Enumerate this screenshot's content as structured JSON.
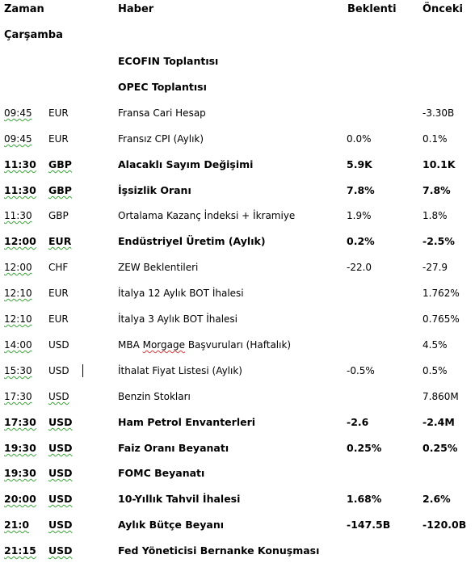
{
  "header": {
    "time": "Zaman",
    "news": "Haber",
    "expected": "Beklenti",
    "previous": "Önceki"
  },
  "day": "Çarşamba",
  "events": [
    {
      "time": "",
      "currency": "",
      "title": "ECOFIN Toplantısı",
      "expected": "",
      "previous": "",
      "bold": true
    },
    {
      "time": "",
      "currency": "",
      "title": "OPEC Toplantısı",
      "expected": "",
      "previous": "",
      "bold": true
    },
    {
      "time": "09:45",
      "currency": "EUR",
      "title": "Fransa Cari Hesap",
      "expected": "",
      "previous": "-3.30B",
      "bold": false
    },
    {
      "time": "09:45",
      "currency": "EUR",
      "title": "Fransız CPI (Aylık)",
      "expected": "0.0%",
      "previous": "0.1%",
      "bold": false
    },
    {
      "time": "11:30",
      "currency": "GBP",
      "title": "Alacaklı Sayım Değişimi",
      "expected": "5.9K",
      "previous": "10.1K",
      "bold": true
    },
    {
      "time": "11:30",
      "currency": "GBP",
      "title": "İşsizlik Oranı",
      "expected": "7.8%",
      "previous": "7.8%",
      "bold": true
    },
    {
      "time": "11:30",
      "currency": "GBP",
      "title": "Ortalama Kazanç İndeksi + İkramiye",
      "expected": "1.9%",
      "previous": "1.8%",
      "bold": false
    },
    {
      "time": "12:00",
      "currency": "EUR",
      "title": "Endüstriyel Üretim (Aylık)",
      "expected": "0.2%",
      "previous": "-2.5%",
      "bold": true
    },
    {
      "time": "12:00",
      "currency": "CHF",
      "title": "ZEW Beklentileri",
      "expected": "-22.0",
      "previous": "-27.9",
      "bold": false
    },
    {
      "time": "12:10",
      "currency": "EUR",
      "title": "İtalya 12 Aylık BOT İhalesi",
      "expected": "",
      "previous": "1.762%",
      "bold": false
    },
    {
      "time": "12:10",
      "currency": "EUR",
      "title": "İtalya 3 Aylık BOT İhalesi",
      "expected": "",
      "previous": "0.765%",
      "bold": false
    },
    {
      "time": "14:00",
      "currency": "USD",
      "title": "MBA Morgage Başvuruları (Haftalık)",
      "expected": "",
      "previous": "4.5%",
      "bold": false
    },
    {
      "time": "15:30",
      "currency": "USD",
      "title": "İthalat Fiyat Listesi (Aylık)",
      "expected": "-0.5%",
      "previous": "0.5%",
      "bold": false
    },
    {
      "time": "17:30",
      "currency": "USD",
      "title": "Benzin Stokları",
      "expected": "",
      "previous": "7.860M",
      "bold": false
    },
    {
      "time": "17:30",
      "currency": "USD",
      "title": "Ham Petrol Envanterleri",
      "expected": "-2.6",
      "previous": "-2.4M",
      "bold": true
    },
    {
      "time": "19:30",
      "currency": "USD",
      "title": "Faiz Oranı Beyanatı",
      "expected": "0.25%",
      "previous": "0.25%",
      "bold": true
    },
    {
      "time": "19:30",
      "currency": "USD",
      "title": "FOMC Beyanatı",
      "expected": "",
      "previous": "",
      "bold": true
    },
    {
      "time": "20:00",
      "currency": "USD",
      "title": "10-Yıllık Tahvil İhalesi",
      "expected": "1.68%",
      "previous": "2.6%",
      "bold": true
    },
    {
      "time": "21:0",
      "currency": "USD",
      "title": "Aylık Bütçe Beyanı",
      "expected": "-147.5B",
      "previous": "-120.0B",
      "bold": true
    },
    {
      "time": "21:15",
      "currency": "USD",
      "title": "Fed Yöneticisi Bernanke Konuşması",
      "expected": "",
      "previous": "",
      "bold": true
    }
  ]
}
